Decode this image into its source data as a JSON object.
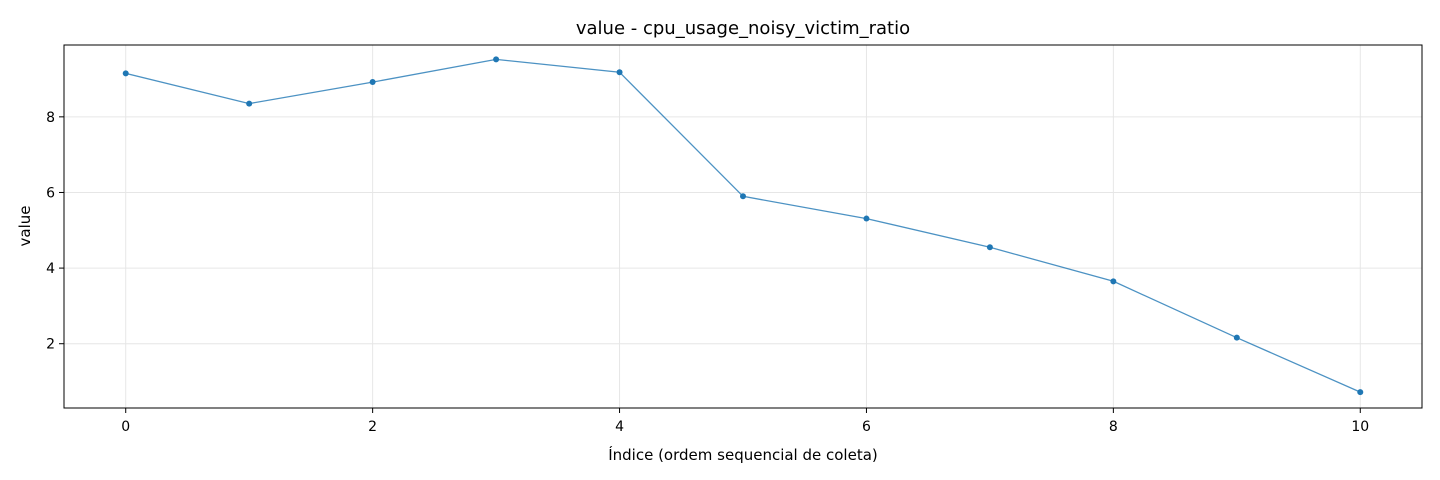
{
  "chart_data": {
    "type": "line",
    "title": "value - cpu_usage_noisy_victim_ratio",
    "xlabel": "Índice (ordem sequencial de coleta)",
    "ylabel": "value",
    "xlim": [
      -0.5,
      10.5
    ],
    "ylim": [
      0.3,
      9.9
    ],
    "x_ticks": [
      0,
      2,
      4,
      6,
      8,
      10
    ],
    "y_ticks": [
      2,
      4,
      6,
      8
    ],
    "grid": true,
    "legend": "none",
    "series": [
      {
        "color": "#1f77b4",
        "x": [
          0,
          1,
          2,
          3,
          4,
          5,
          6,
          7,
          8,
          9,
          10
        ],
        "values": [
          9.15,
          8.35,
          8.92,
          9.52,
          9.18,
          5.9,
          5.31,
          4.55,
          3.65,
          2.16,
          0.72
        ]
      }
    ]
  }
}
